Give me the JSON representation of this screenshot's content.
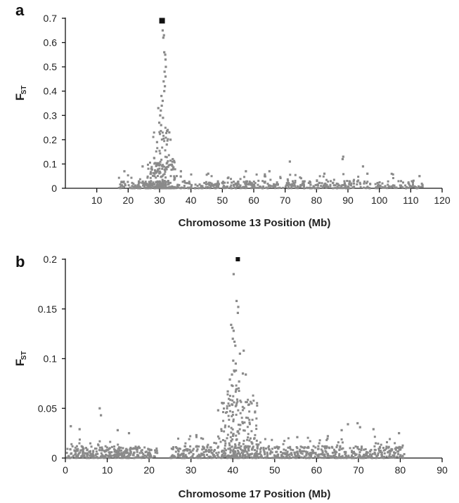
{
  "chart_data": [
    {
      "type": "scatter",
      "panel_label": "a",
      "xlabel": "Chromosome 13 Position (Mb)",
      "ylabel": "F",
      "ylabel_sub": "ST",
      "xlim": [
        0,
        120
      ],
      "ylim": [
        0,
        0.7
      ],
      "xticks": [
        10,
        20,
        30,
        40,
        50,
        60,
        70,
        80,
        90,
        100,
        110,
        120
      ],
      "xtick_labels": [
        "10",
        "20",
        "30",
        "40",
        "50",
        "60",
        "70",
        "80",
        "90",
        "100",
        "110",
        "120"
      ],
      "yticks": [
        0,
        0.1,
        0.2,
        0.3,
        0.4,
        0.5,
        0.6,
        0.7
      ],
      "ytick_labels": [
        "0",
        "0.1",
        "0.2",
        "0.3",
        "0.4",
        "0.5",
        "0.6",
        "0.7"
      ],
      "grid": false,
      "legend": "none",
      "colors": {
        "points": "#8a8a8a",
        "peak": "#111111",
        "axis": "#111111"
      },
      "peak_point": {
        "x": 30.8,
        "y": 0.69
      },
      "regions": [
        {
          "x_start": 17,
          "x_end": 114,
          "y_max": 0.03,
          "n": 420,
          "seed": 11
        },
        {
          "x_start": 17,
          "x_end": 114,
          "y_max": 0.06,
          "n": 160,
          "seed": 12
        },
        {
          "x_start": 26,
          "x_end": 35,
          "y_max": 0.12,
          "n": 120,
          "seed": 13
        },
        {
          "x_start": 28,
          "x_end": 33,
          "y_max": 0.25,
          "n": 70,
          "seed": 14
        }
      ],
      "points": [
        [
          31.0,
          0.65
        ],
        [
          31.4,
          0.63
        ],
        [
          31.2,
          0.62
        ],
        [
          31.5,
          0.56
        ],
        [
          31.8,
          0.55
        ],
        [
          31.9,
          0.53
        ],
        [
          32.0,
          0.5
        ],
        [
          31.6,
          0.48
        ],
        [
          31.9,
          0.46
        ],
        [
          31.3,
          0.44
        ],
        [
          31.7,
          0.42
        ],
        [
          31.5,
          0.4
        ],
        [
          30.6,
          0.38
        ],
        [
          31.0,
          0.36
        ],
        [
          30.7,
          0.34
        ],
        [
          29.6,
          0.33
        ],
        [
          30.4,
          0.32
        ],
        [
          30.2,
          0.3
        ],
        [
          31.1,
          0.29
        ],
        [
          29.9,
          0.27
        ],
        [
          30.5,
          0.26
        ],
        [
          32.6,
          0.24
        ],
        [
          33.1,
          0.23
        ],
        [
          33.5,
          0.2
        ],
        [
          29.2,
          0.19
        ],
        [
          32.3,
          0.18
        ],
        [
          34.2,
          0.12
        ],
        [
          36.8,
          0.07
        ],
        [
          18.8,
          0.07
        ],
        [
          24.6,
          0.09
        ],
        [
          71.5,
          0.11
        ],
        [
          88.5,
          0.13
        ],
        [
          88.3,
          0.12
        ],
        [
          94.8,
          0.09
        ],
        [
          65.0,
          0.07
        ],
        [
          57.5,
          0.07
        ],
        [
          96.2,
          0.06
        ],
        [
          112.8,
          0.05
        ],
        [
          45.5,
          0.06
        ],
        [
          82.5,
          0.06
        ]
      ]
    },
    {
      "type": "scatter",
      "panel_label": "b",
      "xlabel": "Chromosome 17 Position (Mb)",
      "ylabel": "F",
      "ylabel_sub": "ST",
      "xlim": [
        0,
        90
      ],
      "ylim": [
        0,
        0.2
      ],
      "xticks": [
        0,
        10,
        20,
        30,
        40,
        50,
        60,
        70,
        80,
        90
      ],
      "xtick_labels": [
        "0",
        "10",
        "20",
        "30",
        "40",
        "50",
        "60",
        "70",
        "80",
        "90"
      ],
      "yticks": [
        0,
        0.05,
        0.1,
        0.15,
        0.2
      ],
      "ytick_labels": [
        "0",
        "0.05",
        "0.1",
        "0.15",
        "0.2"
      ],
      "grid": false,
      "legend": "none",
      "colors": {
        "points": "#8a8a8a",
        "peak": "#111111",
        "axis": "#111111"
      },
      "peak_point": {
        "x": 41.2,
        "y": 0.2
      },
      "regions": [
        {
          "x_start": 0.3,
          "x_end": 22,
          "y_max": 0.012,
          "n": 240,
          "seed": 21
        },
        {
          "x_start": 0.3,
          "x_end": 22,
          "y_max": 0.02,
          "n": 70,
          "seed": 22
        },
        {
          "x_start": 25,
          "x_end": 81,
          "y_max": 0.012,
          "n": 520,
          "seed": 23
        },
        {
          "x_start": 25,
          "x_end": 81,
          "y_max": 0.022,
          "n": 150,
          "seed": 24
        },
        {
          "x_start": 37,
          "x_end": 46,
          "y_max": 0.065,
          "n": 160,
          "seed": 25
        },
        {
          "x_start": 38.5,
          "x_end": 42,
          "y_max": 0.09,
          "n": 50,
          "seed": 26
        }
      ],
      "points": [
        [
          40.2,
          0.185
        ],
        [
          40.9,
          0.158
        ],
        [
          41.3,
          0.152
        ],
        [
          41.2,
          0.146
        ],
        [
          39.6,
          0.134
        ],
        [
          39.9,
          0.131
        ],
        [
          40.2,
          0.128
        ],
        [
          40.0,
          0.12
        ],
        [
          40.4,
          0.117
        ],
        [
          40.6,
          0.113
        ],
        [
          41.7,
          0.105
        ],
        [
          42.6,
          0.108
        ],
        [
          40.1,
          0.098
        ],
        [
          40.7,
          0.095
        ],
        [
          40.3,
          0.088
        ],
        [
          39.8,
          0.084
        ],
        [
          42.4,
          0.085
        ],
        [
          43.1,
          0.084
        ],
        [
          39.3,
          0.079
        ],
        [
          41.5,
          0.077
        ],
        [
          38.8,
          0.067
        ],
        [
          37.6,
          0.055
        ],
        [
          44.5,
          0.055
        ],
        [
          45.3,
          0.046
        ],
        [
          36.5,
          0.048
        ],
        [
          8.2,
          0.05
        ],
        [
          8.5,
          0.043
        ],
        [
          1.3,
          0.032
        ],
        [
          12.5,
          0.028
        ],
        [
          67.5,
          0.034
        ],
        [
          69.8,
          0.035
        ],
        [
          70.4,
          0.031
        ],
        [
          66.0,
          0.028
        ],
        [
          73.6,
          0.029
        ],
        [
          79.7,
          0.025
        ],
        [
          3.4,
          0.029
        ],
        [
          15.2,
          0.025
        ],
        [
          62.7,
          0.022
        ],
        [
          55.4,
          0.021
        ],
        [
          31.3,
          0.023
        ]
      ]
    }
  ]
}
